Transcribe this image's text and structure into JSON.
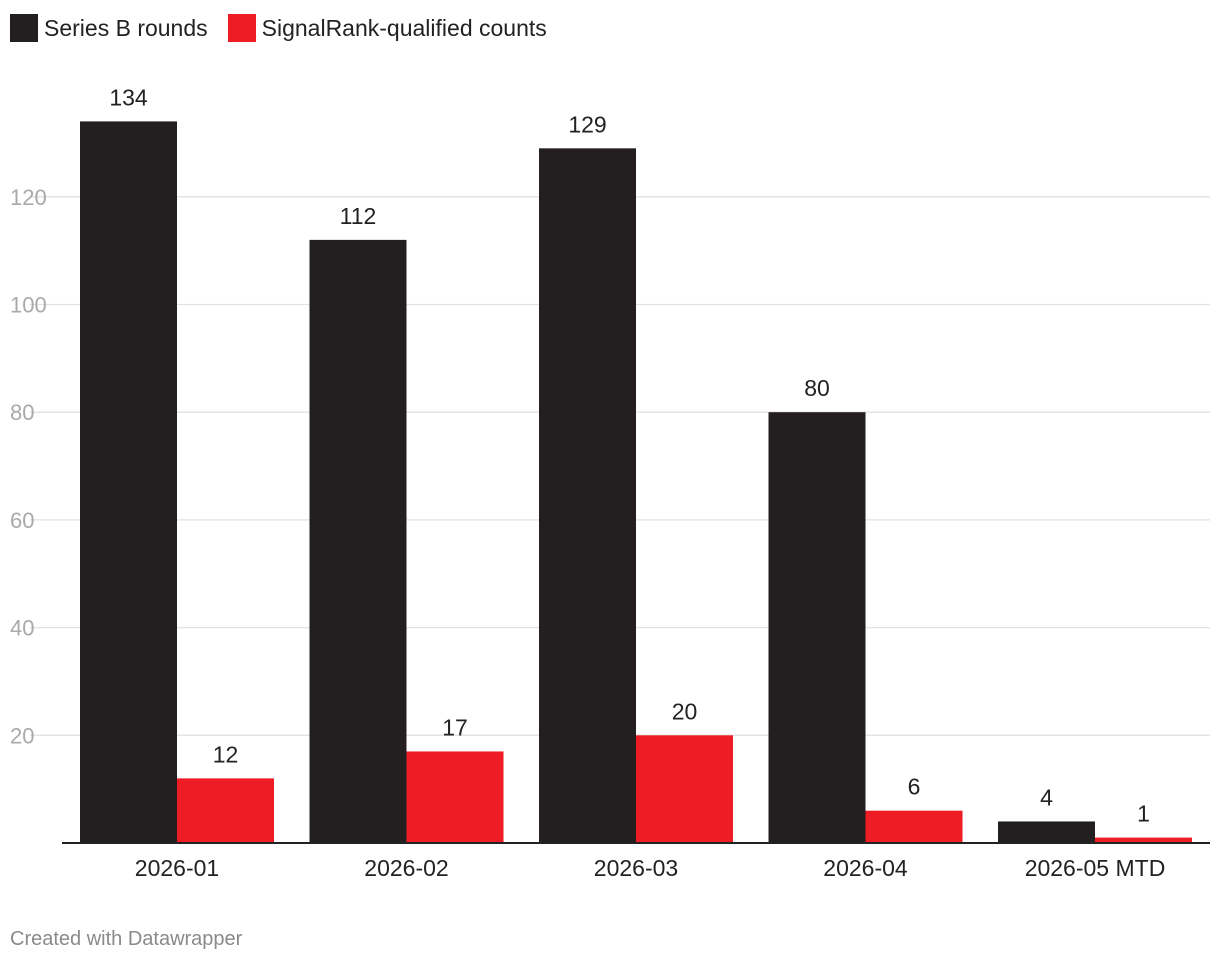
{
  "chart_data": {
    "type": "bar",
    "categories": [
      "2026-01",
      "2026-02",
      "2026-03",
      "2026-04",
      "2026-05 MTD"
    ],
    "series": [
      {
        "name": "Series B rounds",
        "color": "#231f20",
        "values": [
          134,
          112,
          129,
          80,
          4
        ]
      },
      {
        "name": "SignalRank-qualified counts",
        "color": "#ee1c25",
        "values": [
          12,
          17,
          20,
          6,
          1
        ]
      }
    ],
    "yticks": [
      20,
      40,
      60,
      80,
      100,
      120
    ],
    "ylim": [
      0,
      134
    ],
    "grid": true,
    "legend_position": "top-left",
    "data_labels": true
  },
  "footer": {
    "credit": "Created with Datawrapper"
  }
}
